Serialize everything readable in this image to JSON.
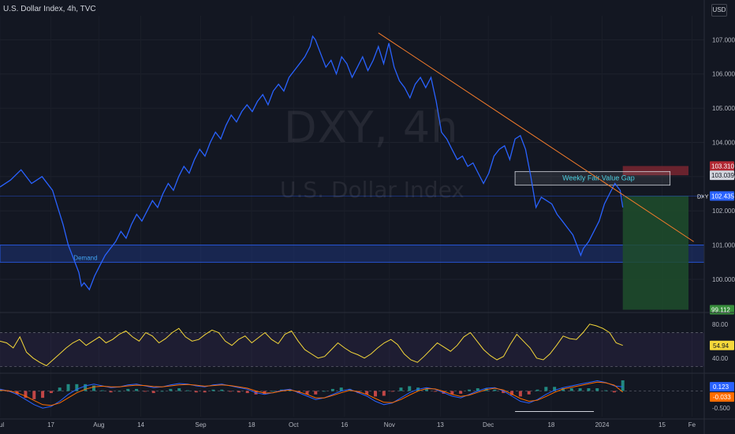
{
  "header": {
    "title": "U.S. Dollar Index, 4h, TVC",
    "currency": "USD"
  },
  "watermark": {
    "ticker": "DXY, 4h",
    "name": "U.S. Dollar Index"
  },
  "colors": {
    "background": "#131722",
    "price_line": "#2962ff",
    "trendline": "#f57c2b",
    "rsi_line": "#f5d83a",
    "macd_line": "#2962ff",
    "signal_line": "#ff6d00",
    "hist_up": "#26a69a",
    "hist_down": "#ef5350",
    "demand_zone": "#1e3a8a",
    "fvg_box": "#ffffff",
    "stop_zone": "#7a2630",
    "target_zone": "#1e4d2b"
  },
  "chart_data": [
    {
      "type": "line",
      "title": "U.S. Dollar Index, 4h, TVC",
      "x_ticks": [
        "Jul",
        "17",
        "Aug",
        "14",
        "Sep",
        "18",
        "Oct",
        "16",
        "Nov",
        "13",
        "Dec",
        "18",
        "2024",
        "15",
        "Fe"
      ],
      "y_ticks": [
        "107.000",
        "106.000",
        "105.000",
        "104.000",
        "103.000",
        "102.000",
        "101.000",
        "100.000"
      ],
      "ylim": [
        99.1,
        107.7
      ],
      "series": [
        {
          "name": "DXY",
          "points": [
            [
              0,
              102.7
            ],
            [
              2,
              102.9
            ],
            [
              4,
              103.2
            ],
            [
              6,
              102.8
            ],
            [
              8,
              103.0
            ],
            [
              10,
              102.6
            ],
            [
              11,
              102.1
            ],
            [
              12,
              101.6
            ],
            [
              13,
              101.0
            ],
            [
              14,
              100.6
            ],
            [
              15,
              100.2
            ],
            [
              15.5,
              99.8
            ],
            [
              16,
              99.9
            ],
            [
              17,
              99.7
            ],
            [
              18,
              100.1
            ],
            [
              19,
              100.4
            ],
            [
              20,
              100.7
            ],
            [
              21,
              100.9
            ],
            [
              22,
              101.1
            ],
            [
              23,
              101.4
            ],
            [
              24,
              101.2
            ],
            [
              25,
              101.6
            ],
            [
              26,
              101.9
            ],
            [
              27,
              101.7
            ],
            [
              28,
              102.0
            ],
            [
              29,
              102.3
            ],
            [
              30,
              102.1
            ],
            [
              31,
              102.5
            ],
            [
              32,
              102.8
            ],
            [
              33,
              102.6
            ],
            [
              34,
              103.0
            ],
            [
              35,
              103.3
            ],
            [
              36,
              103.1
            ],
            [
              37,
              103.5
            ],
            [
              38,
              103.8
            ],
            [
              39,
              103.6
            ],
            [
              40,
              104.0
            ],
            [
              41,
              104.3
            ],
            [
              42,
              104.1
            ],
            [
              43,
              104.5
            ],
            [
              44,
              104.8
            ],
            [
              45,
              104.6
            ],
            [
              46,
              104.9
            ],
            [
              47,
              105.1
            ],
            [
              48,
              104.9
            ],
            [
              49,
              105.2
            ],
            [
              50,
              105.4
            ],
            [
              51,
              105.1
            ],
            [
              52,
              105.5
            ],
            [
              53,
              105.7
            ],
            [
              54,
              105.5
            ],
            [
              55,
              105.9
            ],
            [
              56,
              106.1
            ],
            [
              57,
              106.3
            ],
            [
              58,
              106.5
            ],
            [
              59,
              106.8
            ],
            [
              59.5,
              107.1
            ],
            [
              60,
              107.0
            ],
            [
              61,
              106.6
            ],
            [
              62,
              106.2
            ],
            [
              63,
              106.4
            ],
            [
              64,
              106.0
            ],
            [
              65,
              106.5
            ],
            [
              66,
              106.3
            ],
            [
              67,
              105.9
            ],
            [
              68,
              106.2
            ],
            [
              69,
              106.5
            ],
            [
              70,
              106.1
            ],
            [
              71,
              106.4
            ],
            [
              72,
              106.8
            ],
            [
              73,
              106.3
            ],
            [
              74,
              106.9
            ],
            [
              75,
              106.2
            ],
            [
              76,
              105.8
            ],
            [
              77,
              105.6
            ],
            [
              78,
              105.3
            ],
            [
              79,
              105.7
            ],
            [
              80,
              105.9
            ],
            [
              81,
              105.6
            ],
            [
              82,
              105.9
            ],
            [
              83,
              105.2
            ],
            [
              84,
              104.3
            ],
            [
              85,
              104.1
            ],
            [
              86,
              103.8
            ],
            [
              87,
              103.5
            ],
            [
              88,
              103.6
            ],
            [
              89,
              103.3
            ],
            [
              90,
              103.4
            ],
            [
              91,
              103.1
            ],
            [
              92,
              102.8
            ],
            [
              93,
              103.1
            ],
            [
              94,
              103.6
            ],
            [
              95,
              103.8
            ],
            [
              96,
              103.9
            ],
            [
              97,
              103.5
            ],
            [
              98,
              104.1
            ],
            [
              99,
              104.2
            ],
            [
              100,
              103.8
            ],
            [
              101,
              103.0
            ],
            [
              102,
              102.1
            ],
            [
              103,
              102.4
            ],
            [
              104,
              102.3
            ],
            [
              105,
              102.2
            ],
            [
              106,
              101.9
            ],
            [
              107,
              101.7
            ],
            [
              108,
              101.5
            ],
            [
              109,
              101.3
            ],
            [
              110,
              100.9
            ],
            [
              110.5,
              100.7
            ],
            [
              111,
              100.9
            ],
            [
              112,
              101.1
            ],
            [
              113,
              101.4
            ],
            [
              114,
              101.7
            ],
            [
              115,
              102.2
            ],
            [
              116,
              102.5
            ],
            [
              117,
              102.8
            ],
            [
              118,
              102.6
            ],
            [
              118.5,
              102.1
            ]
          ]
        }
      ],
      "annotations": {
        "demand_label": "Demand",
        "demand_zone": [
          100.5,
          101.0
        ],
        "fvg_label": "Weekly Fair Value Gap",
        "fvg_zone": [
          102.75,
          103.15
        ],
        "trendline": [
          [
            72,
            107.2
          ],
          [
            132,
            101.1
          ]
        ],
        "stop_zone": [
          103.039,
          103.31
        ],
        "target_zone": [
          99.112,
          102.435
        ],
        "last_price": "102.435",
        "last_price_symbol": "DXY",
        "stop_level": "103.310",
        "entry_level": "103.039",
        "target_level": "99.112"
      }
    },
    {
      "type": "line",
      "title": "",
      "y_ticks": [
        "80.00",
        "40.00"
      ],
      "ylim": [
        25,
        90
      ],
      "band": [
        30,
        70
      ],
      "last_value": "54.94",
      "series": [
        {
          "name": "RSI",
          "values": [
            60,
            58,
            52,
            65,
            47,
            40,
            35,
            31,
            38,
            45,
            52,
            58,
            62,
            55,
            60,
            65,
            58,
            62,
            68,
            72,
            65,
            60,
            70,
            66,
            58,
            63,
            70,
            75,
            65,
            60,
            62,
            68,
            73,
            70,
            60,
            55,
            62,
            66,
            58,
            64,
            70,
            62,
            57,
            68,
            72,
            60,
            50,
            45,
            40,
            42,
            50,
            58,
            52,
            47,
            44,
            40,
            45,
            52,
            58,
            62,
            56,
            45,
            38,
            35,
            42,
            50,
            58,
            53,
            48,
            55,
            65,
            70,
            60,
            50,
            43,
            38,
            42,
            56,
            68,
            60,
            52,
            40,
            38,
            45,
            55,
            66,
            63,
            62,
            70,
            80,
            78,
            75,
            70,
            58,
            55
          ]
        }
      ]
    },
    {
      "type": "bar",
      "title": "",
      "y_ticks": [
        "-0.500"
      ],
      "ylim": [
        -0.75,
        0.45
      ],
      "last_macd": "0.123",
      "last_signal": "-0.033",
      "series": [
        {
          "name": "MACD",
          "values": [
            0.05,
            0.0,
            -0.1,
            -0.25,
            -0.4,
            -0.5,
            -0.45,
            -0.3,
            -0.1,
            0.05,
            0.15,
            0.2,
            0.15,
            0.1,
            0.12,
            0.18,
            0.2,
            0.15,
            0.1,
            0.12,
            0.18,
            0.22,
            0.2,
            0.15,
            0.12,
            0.18,
            0.2,
            0.15,
            0.1,
            0.05,
            -0.05,
            -0.1,
            -0.05,
            0.02,
            0.05,
            -0.05,
            -0.15,
            -0.25,
            -0.2,
            -0.1,
            0.0,
            0.05,
            -0.05,
            -0.15,
            -0.3,
            -0.4,
            -0.35,
            -0.2,
            -0.05,
            0.05,
            0.1,
            0.05,
            -0.05,
            -0.15,
            -0.2,
            -0.1,
            0.0,
            0.08,
            0.1,
            0.0,
            -0.15,
            -0.3,
            -0.35,
            -0.25,
            -0.1,
            0.02,
            0.1,
            0.15,
            0.2,
            0.25,
            0.3,
            0.25,
            0.15,
            0.123
          ]
        },
        {
          "name": "Signal",
          "values": [
            0.02,
            0.01,
            -0.05,
            -0.15,
            -0.28,
            -0.4,
            -0.42,
            -0.35,
            -0.2,
            -0.05,
            0.05,
            0.12,
            0.14,
            0.12,
            0.12,
            0.15,
            0.17,
            0.16,
            0.13,
            0.12,
            0.15,
            0.18,
            0.19,
            0.17,
            0.14,
            0.16,
            0.18,
            0.16,
            0.12,
            0.08,
            0.0,
            -0.06,
            -0.05,
            0.0,
            0.03,
            -0.02,
            -0.1,
            -0.2,
            -0.2,
            -0.13,
            -0.05,
            0.02,
            -0.02,
            -0.1,
            -0.22,
            -0.33,
            -0.34,
            -0.25,
            -0.12,
            0.0,
            0.07,
            0.06,
            -0.01,
            -0.1,
            -0.16,
            -0.12,
            -0.04,
            0.04,
            0.08,
            0.03,
            -0.09,
            -0.22,
            -0.3,
            -0.27,
            -0.16,
            -0.04,
            0.06,
            0.11,
            0.16,
            0.21,
            0.26,
            0.24,
            0.17,
            -0.033
          ]
        }
      ]
    }
  ]
}
